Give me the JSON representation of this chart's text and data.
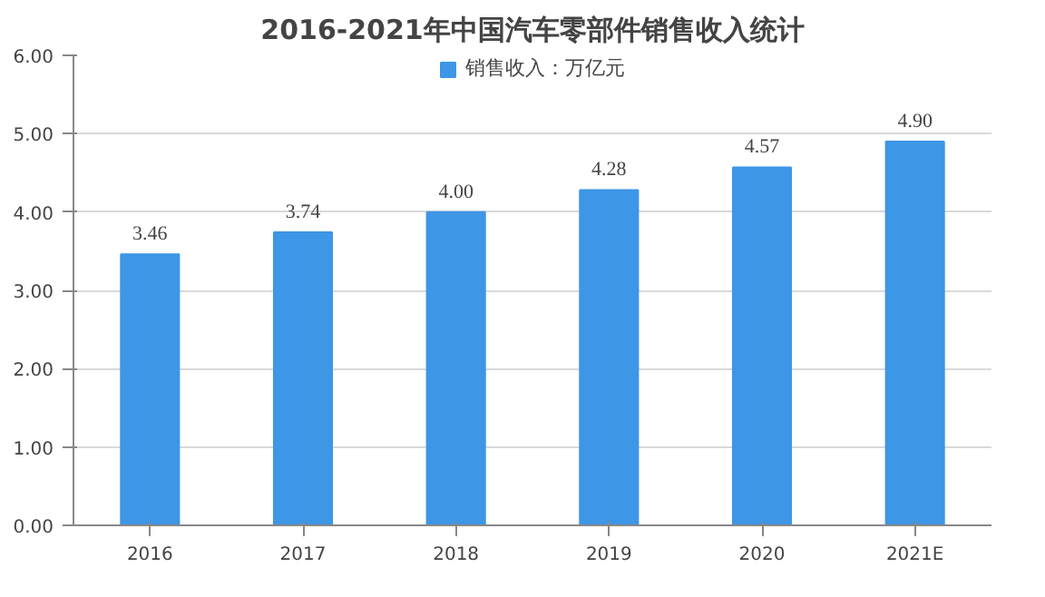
{
  "chart_data": {
    "type": "bar",
    "title": "2016-2021年中国汽车零部件销售收入统计",
    "categories": [
      "2016",
      "2017",
      "2018",
      "2019",
      "2020",
      "2021E"
    ],
    "series": [
      {
        "name": "销售收入：万亿元",
        "color": "#3d96e6",
        "values": [
          3.46,
          3.74,
          4.0,
          4.28,
          4.57,
          4.9
        ],
        "value_labels": [
          "3.46",
          "3.74",
          "4.00",
          "4.28",
          "4.57",
          "4.90"
        ]
      }
    ],
    "ylim": [
      0,
      6
    ],
    "yticks": [
      {
        "value": 0,
        "label": "0.00"
      },
      {
        "value": 1,
        "label": "1.00"
      },
      {
        "value": 2,
        "label": "2.00"
      },
      {
        "value": 3,
        "label": "3.00"
      },
      {
        "value": 4,
        "label": "4.00"
      },
      {
        "value": 5,
        "label": "5.00"
      },
      {
        "value": 6,
        "label": "6.00"
      }
    ],
    "grid": "y",
    "legend": "top"
  }
}
